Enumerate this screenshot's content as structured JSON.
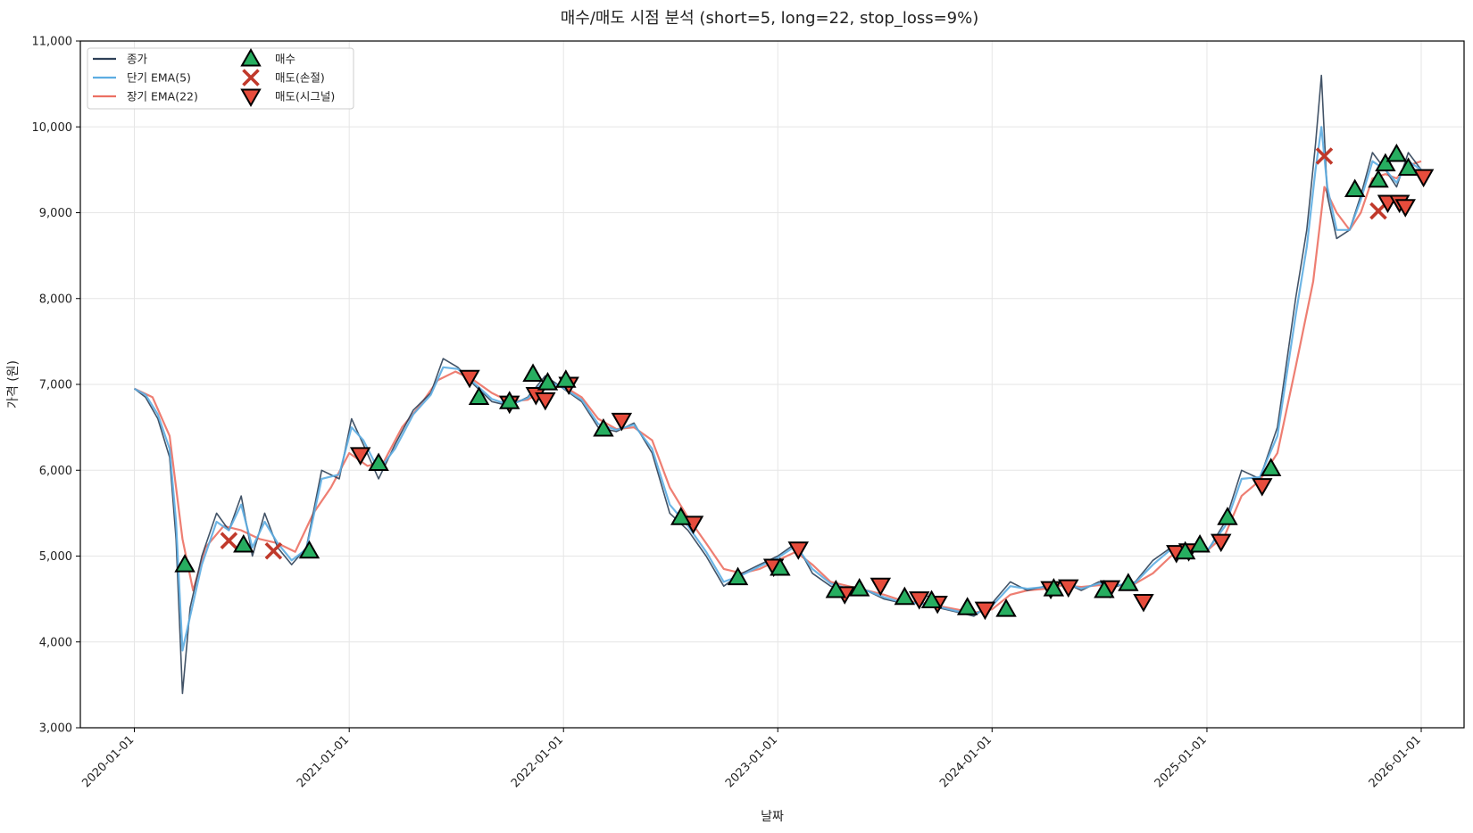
{
  "chart_data": {
    "type": "line",
    "title": "매수/매도 시점 분석 (short=5, long=22, stop_loss=9%)",
    "xlabel": "날짜",
    "ylabel": "가격 (원)",
    "xlim": [
      "2019-10-01",
      "2026-03-15"
    ],
    "ylim": [
      3000,
      11000
    ],
    "x_ticks": [
      "2020-01-01",
      "2021-01-01",
      "2022-01-01",
      "2023-01-01",
      "2024-01-01",
      "2025-01-01",
      "2026-01-01"
    ],
    "y_ticks": [
      3000,
      4000,
      5000,
      6000,
      7000,
      8000,
      9000,
      10000,
      11000
    ],
    "y_tick_labels": [
      "3,000",
      "4,000",
      "5,000",
      "6,000",
      "7,000",
      "8,000",
      "9,000",
      "10,000",
      "11,000"
    ],
    "grid": true,
    "legend_position": "top-left",
    "colors": {
      "close": "#2e4057",
      "ema_short": "#5dade2",
      "ema_long": "#ec7063",
      "buy": "#27ae60",
      "sell_stop": "#c0392b",
      "sell_signal": "#e74c3c"
    },
    "series": [
      {
        "name": "종가",
        "key": "close",
        "x": [
          "2020-01-01",
          "2020-01-20",
          "2020-02-10",
          "2020-03-01",
          "2020-03-12",
          "2020-03-23",
          "2020-04-05",
          "2020-04-25",
          "2020-05-20",
          "2020-06-10",
          "2020-07-01",
          "2020-07-20",
          "2020-08-10",
          "2020-09-01",
          "2020-09-25",
          "2020-10-20",
          "2020-11-15",
          "2020-12-15",
          "2021-01-05",
          "2021-01-25",
          "2021-02-20",
          "2021-03-20",
          "2021-04-20",
          "2021-05-20",
          "2021-06-10",
          "2021-07-05",
          "2021-08-01",
          "2021-09-01",
          "2021-10-01",
          "2021-11-01",
          "2021-12-01",
          "2022-01-01",
          "2022-02-01",
          "2022-03-01",
          "2022-04-01",
          "2022-05-01",
          "2022-06-01",
          "2022-07-01",
          "2022-08-01",
          "2022-09-01",
          "2022-10-01",
          "2022-11-01",
          "2022-12-01",
          "2023-01-01",
          "2023-02-01",
          "2023-03-01",
          "2023-04-01",
          "2023-05-01",
          "2023-06-01",
          "2023-07-01",
          "2023-08-01",
          "2023-09-01",
          "2023-10-01",
          "2023-11-01",
          "2023-12-01",
          "2024-01-01",
          "2024-02-01",
          "2024-03-01",
          "2024-04-01",
          "2024-05-01",
          "2024-06-01",
          "2024-07-01",
          "2024-08-01",
          "2024-09-01",
          "2024-10-01",
          "2024-11-01",
          "2024-12-01",
          "2025-01-01",
          "2025-02-01",
          "2025-03-01",
          "2025-04-01",
          "2025-05-01",
          "2025-06-01",
          "2025-06-20",
          "2025-07-05",
          "2025-07-15",
          "2025-07-25",
          "2025-08-10",
          "2025-09-01",
          "2025-09-20",
          "2025-10-10",
          "2025-11-01",
          "2025-11-20",
          "2025-12-10",
          "2026-01-01"
        ],
        "values": [
          6950,
          6850,
          6600,
          6150,
          5200,
          3400,
          4400,
          5000,
          5500,
          5300,
          5700,
          5000,
          5500,
          5100,
          4900,
          5100,
          6000,
          5900,
          6600,
          6300,
          5900,
          6300,
          6700,
          6900,
          7300,
          7200,
          7000,
          6800,
          6750,
          6850,
          7100,
          6950,
          6800,
          6500,
          6450,
          6550,
          6200,
          5500,
          5300,
          5000,
          4650,
          4800,
          4900,
          5000,
          5150,
          4800,
          4650,
          4600,
          4600,
          4500,
          4450,
          4450,
          4400,
          4350,
          4300,
          4450,
          4700,
          4600,
          4650,
          4700,
          4600,
          4700,
          4650,
          4700,
          4950,
          5100,
          5100,
          5050,
          5400,
          6000,
          5900,
          6500,
          8000,
          8800,
          9800,
          10600,
          9200,
          8700,
          8800,
          9200,
          9700,
          9500,
          9300,
          9700,
          9500
        ]
      },
      {
        "name": "단기 EMA(5)",
        "key": "ema_short",
        "x": [
          "2020-01-01",
          "2020-01-20",
          "2020-02-10",
          "2020-03-01",
          "2020-03-12",
          "2020-03-23",
          "2020-04-05",
          "2020-04-25",
          "2020-05-20",
          "2020-06-10",
          "2020-07-01",
          "2020-07-20",
          "2020-08-10",
          "2020-09-01",
          "2020-09-25",
          "2020-10-20",
          "2020-11-15",
          "2020-12-15",
          "2021-01-05",
          "2021-01-25",
          "2021-02-20",
          "2021-03-20",
          "2021-04-20",
          "2021-05-20",
          "2021-06-10",
          "2021-07-05",
          "2021-08-01",
          "2021-09-01",
          "2021-10-01",
          "2021-11-01",
          "2021-12-01",
          "2022-01-01",
          "2022-02-01",
          "2022-03-01",
          "2022-04-01",
          "2022-05-01",
          "2022-06-01",
          "2022-07-01",
          "2022-08-01",
          "2022-09-01",
          "2022-10-01",
          "2022-11-01",
          "2022-12-01",
          "2023-01-01",
          "2023-02-01",
          "2023-03-01",
          "2023-04-01",
          "2023-05-01",
          "2023-06-01",
          "2023-07-01",
          "2023-08-01",
          "2023-09-01",
          "2023-10-01",
          "2023-11-01",
          "2023-12-01",
          "2024-01-01",
          "2024-02-01",
          "2024-03-01",
          "2024-04-01",
          "2024-05-01",
          "2024-06-01",
          "2024-07-01",
          "2024-08-01",
          "2024-09-01",
          "2024-10-01",
          "2024-11-01",
          "2024-12-01",
          "2025-01-01",
          "2025-02-01",
          "2025-03-01",
          "2025-04-01",
          "2025-05-01",
          "2025-06-01",
          "2025-06-20",
          "2025-07-05",
          "2025-07-15",
          "2025-07-25",
          "2025-08-10",
          "2025-09-01",
          "2025-09-20",
          "2025-10-10",
          "2025-11-01",
          "2025-11-20",
          "2025-12-10",
          "2026-01-01"
        ],
        "values": [
          6950,
          6880,
          6650,
          6250,
          5400,
          3900,
          4300,
          4900,
          5400,
          5300,
          5600,
          5100,
          5400,
          5150,
          4950,
          5080,
          5900,
          5950,
          6500,
          6350,
          6000,
          6250,
          6650,
          6880,
          7200,
          7180,
          7020,
          6830,
          6760,
          6840,
          7050,
          6960,
          6820,
          6540,
          6470,
          6530,
          6250,
          5600,
          5350,
          5050,
          4700,
          4780,
          4880,
          4980,
          5120,
          4850,
          4680,
          4620,
          4600,
          4520,
          4460,
          4450,
          4410,
          4360,
          4320,
          4420,
          4650,
          4620,
          4640,
          4690,
          4620,
          4680,
          4660,
          4690,
          4900,
          5080,
          5090,
          5060,
          5350,
          5900,
          5920,
          6400,
          7800,
          8600,
          9500,
          10000,
          9300,
          8800,
          8800,
          9150,
          9600,
          9500,
          9350,
          9600,
          9500
        ]
      },
      {
        "name": "장기 EMA(22)",
        "key": "ema_long",
        "x": [
          "2020-01-01",
          "2020-02-01",
          "2020-03-01",
          "2020-03-23",
          "2020-04-10",
          "2020-05-01",
          "2020-06-01",
          "2020-07-01",
          "2020-08-01",
          "2020-09-01",
          "2020-10-01",
          "2020-11-01",
          "2020-12-01",
          "2021-01-01",
          "2021-02-01",
          "2021-03-01",
          "2021-04-01",
          "2021-05-01",
          "2021-06-01",
          "2021-07-01",
          "2021-08-01",
          "2021-09-01",
          "2021-10-01",
          "2021-11-01",
          "2021-12-01",
          "2022-01-01",
          "2022-02-01",
          "2022-03-01",
          "2022-04-01",
          "2022-05-01",
          "2022-06-01",
          "2022-07-01",
          "2022-08-01",
          "2022-09-01",
          "2022-10-01",
          "2022-11-01",
          "2022-12-01",
          "2023-01-01",
          "2023-02-01",
          "2023-03-01",
          "2023-04-01",
          "2023-05-01",
          "2023-06-01",
          "2023-07-01",
          "2023-08-01",
          "2023-09-01",
          "2023-10-01",
          "2023-11-01",
          "2023-12-01",
          "2024-01-01",
          "2024-02-01",
          "2024-03-01",
          "2024-04-01",
          "2024-05-01",
          "2024-06-01",
          "2024-07-01",
          "2024-08-01",
          "2024-09-01",
          "2024-10-01",
          "2024-11-01",
          "2024-12-01",
          "2025-01-01",
          "2025-02-01",
          "2025-03-01",
          "2025-04-01",
          "2025-05-01",
          "2025-06-01",
          "2025-07-01",
          "2025-07-20",
          "2025-08-10",
          "2025-09-01",
          "2025-09-20",
          "2025-10-10",
          "2025-11-01",
          "2025-11-20",
          "2025-12-10",
          "2026-01-01"
        ],
        "values": [
          6950,
          6850,
          6400,
          5200,
          4600,
          5100,
          5350,
          5300,
          5200,
          5150,
          5050,
          5500,
          5800,
          6200,
          6050,
          6100,
          6500,
          6750,
          7050,
          7150,
          7050,
          6900,
          6800,
          6820,
          6950,
          6980,
          6850,
          6600,
          6480,
          6500,
          6350,
          5800,
          5450,
          5150,
          4850,
          4800,
          4850,
          4950,
          5050,
          4900,
          4700,
          4650,
          4600,
          4550,
          4480,
          4460,
          4420,
          4380,
          4340,
          4380,
          4550,
          4600,
          4620,
          4660,
          4640,
          4660,
          4660,
          4680,
          4800,
          5000,
          5070,
          5060,
          5250,
          5700,
          5880,
          6200,
          7200,
          8200,
          9300,
          9000,
          8800,
          9000,
          9400,
          9450,
          9400,
          9550,
          9600
        ]
      }
    ],
    "markers": {
      "buy": {
        "name": "매수",
        "points": [
          [
            "2020-03-27",
            4900
          ],
          [
            "2020-07-05",
            5130
          ],
          [
            "2020-10-25",
            5060
          ],
          [
            "2021-02-20",
            6080
          ],
          [
            "2021-08-10",
            6850
          ],
          [
            "2021-10-01",
            6800
          ],
          [
            "2021-11-10",
            7120
          ],
          [
            "2021-12-05",
            7020
          ],
          [
            "2022-01-05",
            7050
          ],
          [
            "2022-03-10",
            6480
          ],
          [
            "2022-07-20",
            5450
          ],
          [
            "2022-10-25",
            4750
          ],
          [
            "2023-01-05",
            4860
          ],
          [
            "2023-04-10",
            4600
          ],
          [
            "2023-05-20",
            4620
          ],
          [
            "2023-08-05",
            4520
          ],
          [
            "2023-09-20",
            4480
          ],
          [
            "2023-11-20",
            4400
          ],
          [
            "2024-01-25",
            4380
          ],
          [
            "2024-04-15",
            4620
          ],
          [
            "2024-07-10",
            4600
          ],
          [
            "2024-08-20",
            4680
          ],
          [
            "2024-11-25",
            5050
          ],
          [
            "2024-12-20",
            5130
          ],
          [
            "2025-02-05",
            5450
          ],
          [
            "2025-04-20",
            6020
          ],
          [
            "2025-09-10",
            9270
          ],
          [
            "2025-10-20",
            9380
          ],
          [
            "2025-11-01",
            9570
          ],
          [
            "2025-11-20",
            9680
          ],
          [
            "2025-12-10",
            9520
          ]
        ]
      },
      "sell_stop": {
        "name": "매도(손절)",
        "points": [
          [
            "2020-06-10",
            5180
          ],
          [
            "2020-08-25",
            5060
          ],
          [
            "2025-07-20",
            9660
          ],
          [
            "2025-10-20",
            9020
          ]
        ]
      },
      "sell_signal": {
        "name": "매도(시그널)",
        "points": [
          [
            "2021-01-20",
            6180
          ],
          [
            "2021-07-25",
            7080
          ],
          [
            "2021-10-01",
            6780
          ],
          [
            "2021-11-15",
            6880
          ],
          [
            "2021-12-01",
            6820
          ],
          [
            "2022-01-10",
            7000
          ],
          [
            "2022-04-10",
            6580
          ],
          [
            "2022-08-10",
            5380
          ],
          [
            "2022-12-25",
            4880
          ],
          [
            "2023-02-05",
            5080
          ],
          [
            "2023-04-25",
            4560
          ],
          [
            "2023-06-25",
            4660
          ],
          [
            "2023-08-30",
            4500
          ],
          [
            "2023-09-30",
            4450
          ],
          [
            "2023-12-20",
            4380
          ],
          [
            "2024-04-10",
            4620
          ],
          [
            "2024-05-10",
            4640
          ],
          [
            "2024-07-20",
            4630
          ],
          [
            "2024-09-15",
            4470
          ],
          [
            "2024-11-10",
            5040
          ],
          [
            "2024-12-01",
            5060
          ],
          [
            "2025-01-25",
            5170
          ],
          [
            "2025-04-05",
            5820
          ],
          [
            "2025-11-05",
            9120
          ],
          [
            "2025-11-25",
            9120
          ],
          [
            "2025-12-05",
            9070
          ],
          [
            "2026-01-05",
            9420
          ]
        ]
      }
    },
    "legend": [
      {
        "label": "종가",
        "key": "close",
        "kind": "line"
      },
      {
        "label": "단기 EMA(5)",
        "key": "ema_short",
        "kind": "line"
      },
      {
        "label": "장기 EMA(22)",
        "key": "ema_long",
        "kind": "line"
      },
      {
        "label": "매수",
        "key": "buy",
        "kind": "triangle-up"
      },
      {
        "label": "매도(손절)",
        "key": "sell_stop",
        "kind": "x"
      },
      {
        "label": "매도(시그널)",
        "key": "sell_signal",
        "kind": "triangle-down"
      }
    ]
  }
}
